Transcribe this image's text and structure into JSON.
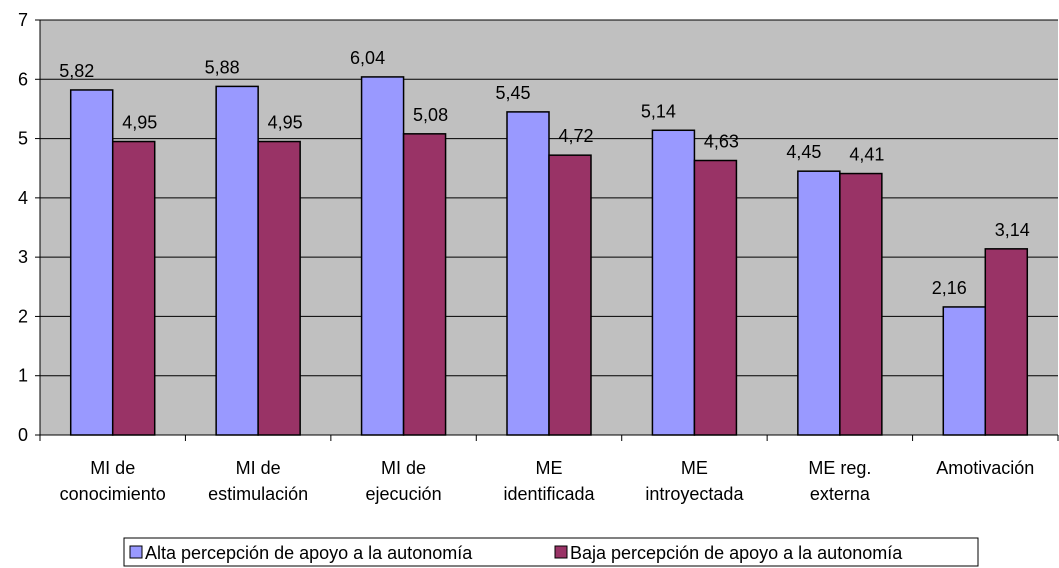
{
  "chart_data": {
    "type": "bar",
    "title": "",
    "xlabel": "",
    "ylabel": "",
    "ylim": [
      0,
      7
    ],
    "yticks": [
      0,
      1,
      2,
      3,
      4,
      5,
      6,
      7
    ],
    "grid": true,
    "legend_position": "bottom",
    "categories": [
      [
        "MI de",
        "conocimiento"
      ],
      [
        "MI de",
        "estimulación"
      ],
      [
        "MI de",
        "ejecución"
      ],
      [
        "ME",
        "identificada"
      ],
      [
        "ME",
        "introyectada"
      ],
      [
        "ME reg.",
        "externa"
      ],
      [
        "Amotivación"
      ]
    ],
    "series": [
      {
        "name": "Alta percepción de apoyo a la autonomía",
        "color": "#9999ff",
        "values": [
          5.82,
          5.88,
          6.04,
          5.45,
          5.14,
          4.45,
          2.16
        ],
        "labels": [
          "5,82",
          "5,88",
          "6,04",
          "5,45",
          "5,14",
          "4,45",
          "2,16"
        ]
      },
      {
        "name": "Baja percepción de apoyo a la autonomía",
        "color": "#993366",
        "values": [
          4.95,
          4.95,
          5.08,
          4.72,
          4.63,
          4.41,
          3.14
        ],
        "labels": [
          "4,95",
          "4,95",
          "5,08",
          "4,72",
          "4,63",
          "4,41",
          "3,14"
        ]
      }
    ],
    "plot_background": "#c0c0c0"
  }
}
